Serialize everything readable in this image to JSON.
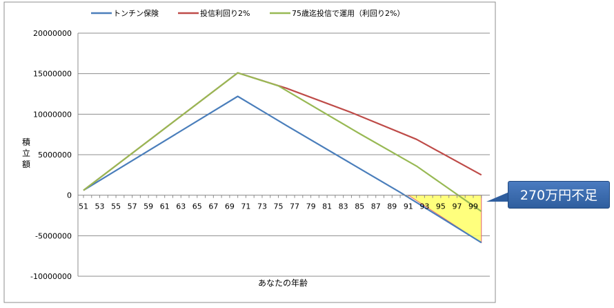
{
  "chart_data": {
    "type": "line",
    "xlabel": "あなたの年齢",
    "ylabel": "積立額",
    "ylim": [
      -10000000,
      20000000
    ],
    "yticks": [
      20000000,
      15000000,
      10000000,
      5000000,
      0,
      -5000000,
      -10000000
    ],
    "xticks": [
      51,
      53,
      55,
      57,
      59,
      61,
      63,
      65,
      67,
      69,
      71,
      73,
      75,
      77,
      79,
      81,
      83,
      85,
      87,
      89,
      91,
      93,
      95,
      97,
      99
    ],
    "xlim": [
      51,
      100
    ],
    "legend_position": "top",
    "series": [
      {
        "name": "トンチン保険",
        "color": "#4a7ebb",
        "points": [
          [
            51,
            600000
          ],
          [
            70,
            12200000
          ],
          [
            76,
            8600000
          ],
          [
            90,
            350000
          ],
          [
            100,
            -5850000
          ]
        ]
      },
      {
        "name": "投信利回り2%",
        "color": "#be4b48",
        "points": [
          [
            51,
            600000
          ],
          [
            70,
            15100000
          ],
          [
            76,
            13200000
          ],
          [
            84,
            10200000
          ],
          [
            92,
            6900000
          ],
          [
            100,
            2500000
          ]
        ]
      },
      {
        "name": "75歳迄投信で運用（利回り2%）",
        "color": "#98b954",
        "points": [
          [
            51,
            600000
          ],
          [
            70,
            15100000
          ],
          [
            75,
            13500000
          ],
          [
            85,
            7600000
          ],
          [
            92,
            3600000
          ],
          [
            98,
            -600000
          ],
          [
            100,
            -2000000
          ]
        ]
      }
    ],
    "shortfall_fill_color": "#ffff66",
    "annotation": "270万円不足"
  }
}
